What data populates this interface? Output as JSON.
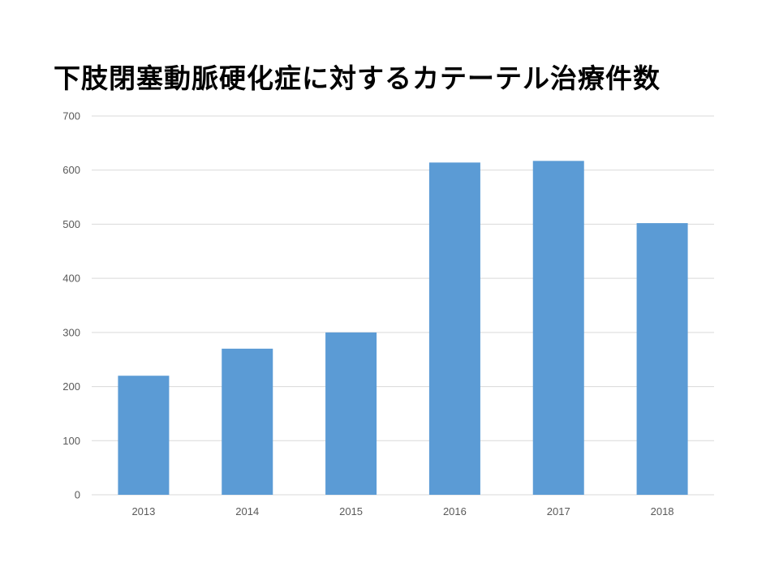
{
  "chart_data": {
    "type": "bar",
    "title": "下肢閉塞動脈硬化症に対するカテーテル治療件数",
    "categories": [
      "2013",
      "2014",
      "2015",
      "2016",
      "2017",
      "2018"
    ],
    "values": [
      220,
      270,
      300,
      614,
      617,
      502
    ],
    "xlabel": "",
    "ylabel": "",
    "ylim": [
      0,
      700
    ],
    "yticks": [
      "0",
      "100",
      "200",
      "300",
      "400",
      "500",
      "600",
      "700"
    ],
    "grid": true,
    "legend": "none",
    "bar_color": "#5B9BD5",
    "grid_color": "#D9D9D9"
  }
}
